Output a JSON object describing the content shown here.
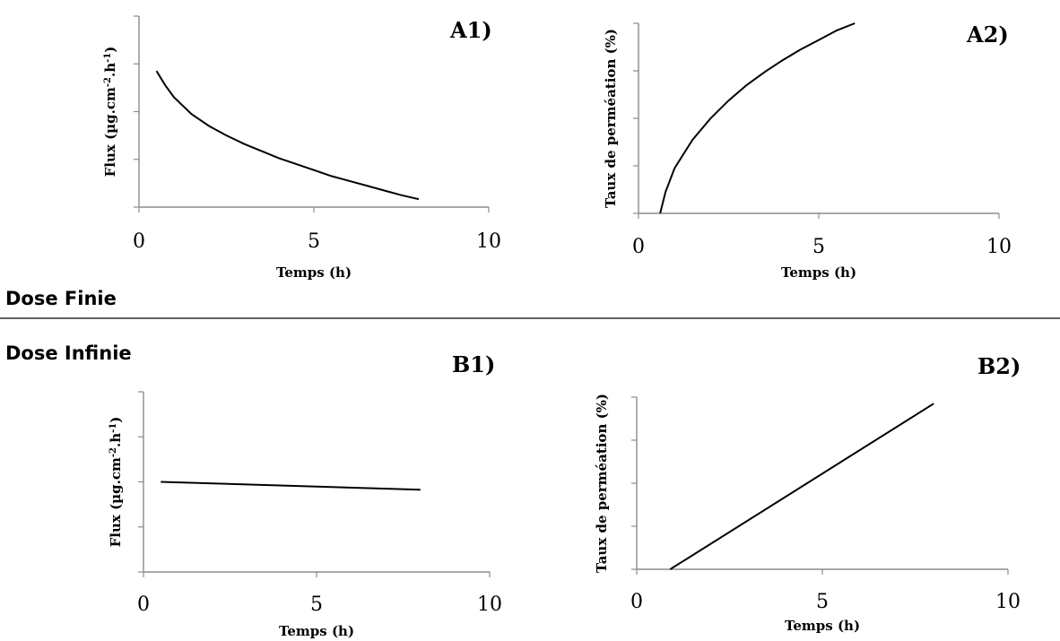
{
  "sections": {
    "finite_label": "Dose Finie",
    "infinite_label": "Dose Infinie"
  },
  "chart_data": [
    {
      "panel_label": "A1)",
      "type": "line",
      "xlabel": "Temps (h)",
      "ylabel_html": "Flux (µg.cm<tspan baseline-shift=\"super\" font-size=\"10\">-2</tspan>.h<tspan baseline-shift=\"super\" font-size=\"10\">-1</tspan>)",
      "xlim": [
        0,
        10
      ],
      "xticks": [
        "0",
        "5",
        "10"
      ],
      "ylim": [
        0,
        8
      ],
      "y_gridlines": 4,
      "series": [
        {
          "x": [
            0.5,
            0.75,
            1,
            1.5,
            2,
            2.5,
            3,
            3.5,
            4,
            4.5,
            5,
            5.5,
            6,
            6.5,
            7,
            7.5,
            8
          ],
          "values": [
            5.7,
            5.1,
            4.6,
            3.9,
            3.4,
            3.0,
            2.65,
            2.35,
            2.05,
            1.8,
            1.55,
            1.3,
            1.1,
            0.9,
            0.7,
            0.5,
            0.33
          ]
        }
      ]
    },
    {
      "panel_label": "A2)",
      "type": "line",
      "xlabel": "Temps (h)",
      "ylabel_html": "Taux de perméation (%)",
      "xlim": [
        0,
        10
      ],
      "xticks": [
        "0",
        "5",
        "10"
      ],
      "ylim": [
        0,
        8
      ],
      "y_gridlines": 4,
      "series": [
        {
          "x": [
            0.6,
            0.75,
            1,
            1.5,
            2,
            2.5,
            3,
            3.5,
            4,
            4.5,
            5,
            5.5,
            6
          ],
          "values": [
            0,
            0.9,
            1.9,
            3.1,
            4.0,
            4.75,
            5.4,
            5.95,
            6.45,
            6.9,
            7.3,
            7.7,
            8.0
          ]
        }
      ]
    },
    {
      "panel_label": "B1)",
      "type": "line",
      "xlabel": "Temps (h)",
      "ylabel_html": "Flux (µg.cm<tspan baseline-shift=\"super\" font-size=\"10\">-2</tspan>.h<tspan baseline-shift=\"super\" font-size=\"10\">-1</tspan>)",
      "xlim": [
        0,
        10
      ],
      "xticks": [
        "0",
        "5",
        "10"
      ],
      "ylim": [
        0,
        8
      ],
      "y_gridlines": 4,
      "series": [
        {
          "x": [
            0.5,
            8
          ],
          "values": [
            4.0,
            3.65
          ]
        }
      ]
    },
    {
      "panel_label": "B2)",
      "type": "line",
      "xlabel": "Temps (h)",
      "ylabel_html": "Taux de perméation (%)",
      "xlim": [
        0,
        10
      ],
      "xticks": [
        "0",
        "5",
        "10"
      ],
      "ylim": [
        0,
        8
      ],
      "y_gridlines": 4,
      "series": [
        {
          "x": [
            0.9,
            8
          ],
          "values": [
            0,
            7.7
          ]
        }
      ]
    }
  ]
}
